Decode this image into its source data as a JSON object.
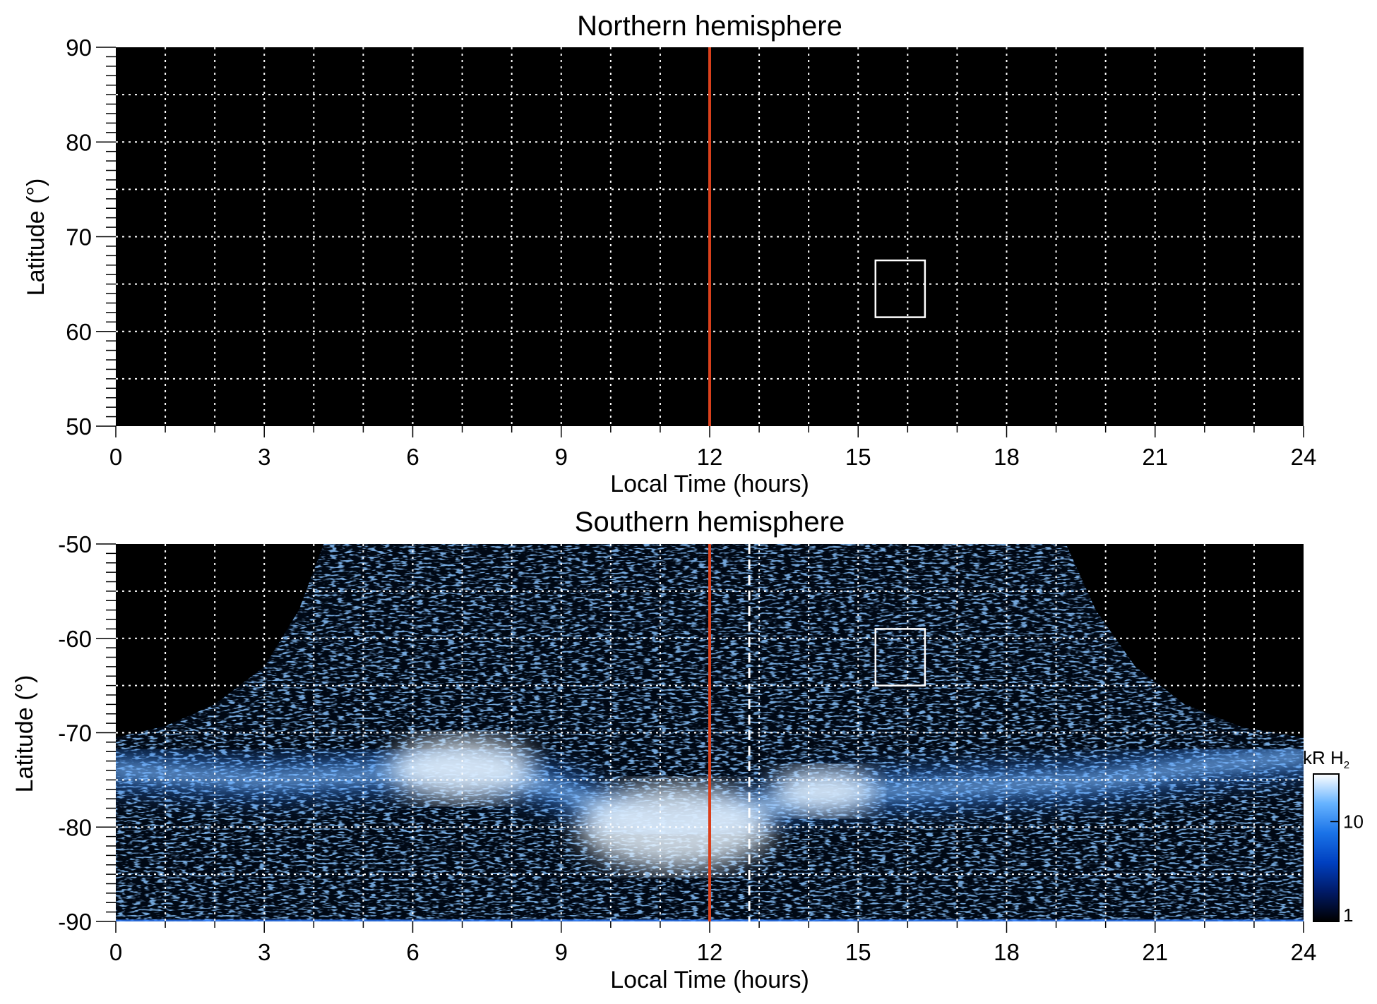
{
  "chart_data": [
    {
      "type": "heatmap",
      "title": "Northern hemisphere",
      "xlabel": "Local Time (hours)",
      "ylabel": "Latitude (°)",
      "xlim": [
        0,
        24
      ],
      "ylim": [
        50,
        90
      ],
      "xticks": [
        "0",
        "3",
        "6",
        "9",
        "12",
        "15",
        "18",
        "21",
        "24"
      ],
      "yticks": [
        "90",
        "80",
        "70",
        "60",
        "50"
      ],
      "grid": true,
      "grid_x_step_hours": 1,
      "grid_y_step_deg": 5,
      "background_color": "#000000",
      "noon_line": {
        "x": 12,
        "color": "#d9401c"
      },
      "box": {
        "x": [
          15.35,
          16.35
        ],
        "y": [
          61.5,
          67.5
        ],
        "color": "#ffffff"
      },
      "emission": "none"
    },
    {
      "type": "heatmap",
      "title": "Southern hemisphere",
      "xlabel": "Local Time (hours)",
      "ylabel": "Latitude (°)",
      "xlim": [
        0,
        24
      ],
      "ylim": [
        -90,
        -50
      ],
      "xticks": [
        "0",
        "3",
        "6",
        "9",
        "12",
        "15",
        "18",
        "21",
        "24"
      ],
      "yticks": [
        "-50",
        "-60",
        "-70",
        "-80",
        "-90"
      ],
      "grid": true,
      "grid_x_step_hours": 1,
      "grid_y_step_deg": 5,
      "background_color": "#000000",
      "noon_line": {
        "x": 12,
        "color": "#d9401c"
      },
      "dashed_line": {
        "x": 12.8,
        "color": "#ffffff"
      },
      "box": {
        "x": [
          15.35,
          16.35
        ],
        "y": [
          -65,
          -59
        ],
        "color": "#ffffff"
      },
      "coverage_edge": {
        "points": [
          [
            0,
            -70.5
          ],
          [
            1,
            -69.3
          ],
          [
            2,
            -67.0
          ],
          [
            3,
            -63.0
          ],
          [
            3.7,
            -57.0
          ],
          [
            4.2,
            -50.0
          ],
          [
            19.2,
            -50.0
          ],
          [
            19.8,
            -57.0
          ],
          [
            20.6,
            -63.0
          ],
          [
            21.6,
            -67.0
          ],
          [
            22.8,
            -69.5
          ],
          [
            24,
            -70.5
          ]
        ]
      },
      "aurora_band": {
        "points": [
          [
            0,
            -74
          ],
          [
            3,
            -75
          ],
          [
            5,
            -74.5
          ],
          [
            6.5,
            -73.6
          ],
          [
            7.5,
            -74
          ],
          [
            9,
            -76
          ],
          [
            10,
            -78.5
          ],
          [
            11,
            -80
          ],
          [
            12,
            -79.5
          ],
          [
            13,
            -78
          ],
          [
            14,
            -76.5
          ],
          [
            16,
            -76
          ],
          [
            18,
            -75.5
          ],
          [
            20,
            -75
          ],
          [
            22,
            -73.5
          ],
          [
            24,
            -72.5
          ]
        ]
      },
      "bright_spots": [
        {
          "x": 11.3,
          "y": -80,
          "value": 30
        },
        {
          "x": 7.0,
          "y": -73.8,
          "value": 20
        },
        {
          "x": 14.3,
          "y": -76.2,
          "value": 12
        }
      ],
      "colorbar": {
        "label_prefix": "kR H",
        "label_subscript": "2",
        "ticks": [
          "1",
          "10"
        ],
        "range": [
          1,
          30
        ],
        "scale": "log",
        "colormap": [
          "#000000",
          "#001a66",
          "#0040c0",
          "#1a73e8",
          "#66b3ff",
          "#ffffff"
        ]
      }
    }
  ]
}
